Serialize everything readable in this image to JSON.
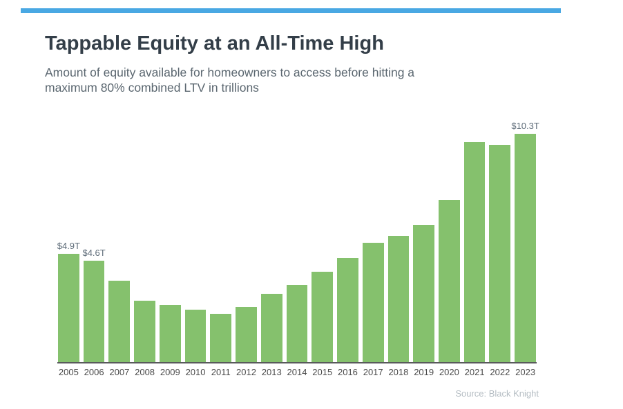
{
  "page": {
    "accent_color": "#49a8e3",
    "background_color": "#ffffff"
  },
  "header": {
    "title": "Tappable Equity at an All-Time High",
    "subtitle": "Amount of equity available for homeowners to access before hitting a maximum 80% combined LTV in trillions"
  },
  "chart_data": {
    "type": "bar",
    "title": "Tappable Equity at an All-Time High",
    "subtitle": "Amount of equity available for homeowners to access before hitting a maximum 80% combined LTV in trillions",
    "unit": "trillions of dollars",
    "categories": [
      "2005",
      "2006",
      "2007",
      "2008",
      "2009",
      "2010",
      "2011",
      "2012",
      "2013",
      "2014",
      "2015",
      "2016",
      "2017",
      "2018",
      "2019",
      "2020",
      "2021",
      "2022",
      "2023"
    ],
    "values": [
      4.9,
      4.6,
      3.7,
      2.8,
      2.6,
      2.4,
      2.2,
      2.5,
      3.1,
      3.5,
      4.1,
      4.7,
      5.4,
      5.7,
      6.2,
      7.3,
      9.9,
      9.8,
      10.3
    ],
    "data_labels": {
      "2005": "$4.9T",
      "2006": "$4.6T",
      "2023": "$10.3T"
    },
    "bar_color": "#85c16d",
    "xlabel": "",
    "ylabel": "",
    "ylim": [
      0,
      11
    ],
    "gridlines": false,
    "legend": "none"
  },
  "footer": {
    "source": "Source: Black Knight"
  }
}
